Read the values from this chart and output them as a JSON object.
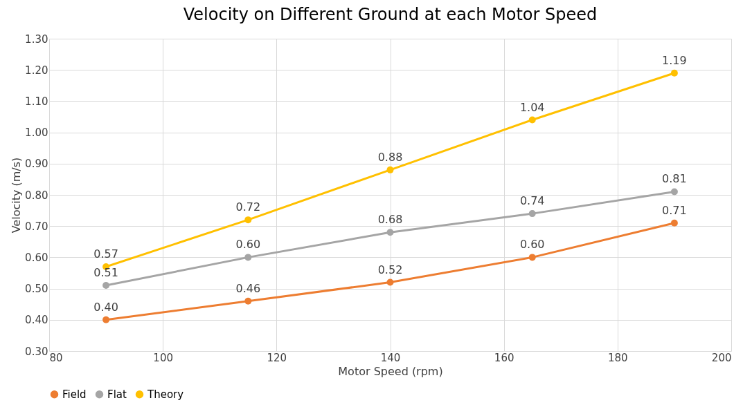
{
  "chart_data": {
    "type": "line",
    "title": "Velocity on Different Ground at each Motor Speed",
    "xlabel": "Motor Speed (rpm)",
    "ylabel": "Velocity (m/s)",
    "x": [
      90,
      115,
      140,
      165,
      190
    ],
    "series": [
      {
        "name": "Field",
        "color": "#ed7d31",
        "values": [
          0.4,
          0.46,
          0.52,
          0.6,
          0.71
        ],
        "value_labels": [
          "0.40",
          "0.46",
          "0.52",
          "0.60",
          "0.71"
        ]
      },
      {
        "name": "Flat",
        "color": "#a5a5a5",
        "values": [
          0.51,
          0.6,
          0.68,
          0.74,
          0.81
        ],
        "value_labels": [
          "0.51",
          "0.60",
          "0.68",
          "0.74",
          "0.81"
        ]
      },
      {
        "name": "Theory",
        "color": "#ffc000",
        "values": [
          0.57,
          0.72,
          0.88,
          1.04,
          1.19
        ],
        "value_labels": [
          "0.57",
          "0.72",
          "0.88",
          "1.04",
          "1.19"
        ]
      }
    ],
    "xlim": [
      80,
      200
    ],
    "xticks": [
      80,
      100,
      120,
      140,
      160,
      180,
      200
    ],
    "ylim": [
      0.3,
      1.3
    ],
    "yticks": [
      {
        "value": 0.3,
        "label": "0.30"
      },
      {
        "value": 0.4,
        "label": "0.40"
      },
      {
        "value": 0.5,
        "label": "0.50"
      },
      {
        "value": 0.6,
        "label": "0.60"
      },
      {
        "value": 0.7,
        "label": "0.70"
      },
      {
        "value": 0.8,
        "label": "0.80"
      },
      {
        "value": 0.9,
        "label": "0.90"
      },
      {
        "value": 1.0,
        "label": "1.00"
      },
      {
        "value": 1.1,
        "label": "1.10"
      },
      {
        "value": 1.2,
        "label": "1.20"
      },
      {
        "value": 1.3,
        "label": "1.30"
      }
    ],
    "grid": true,
    "legend": "bottom",
    "marker": "circle",
    "line_style": "solid"
  }
}
